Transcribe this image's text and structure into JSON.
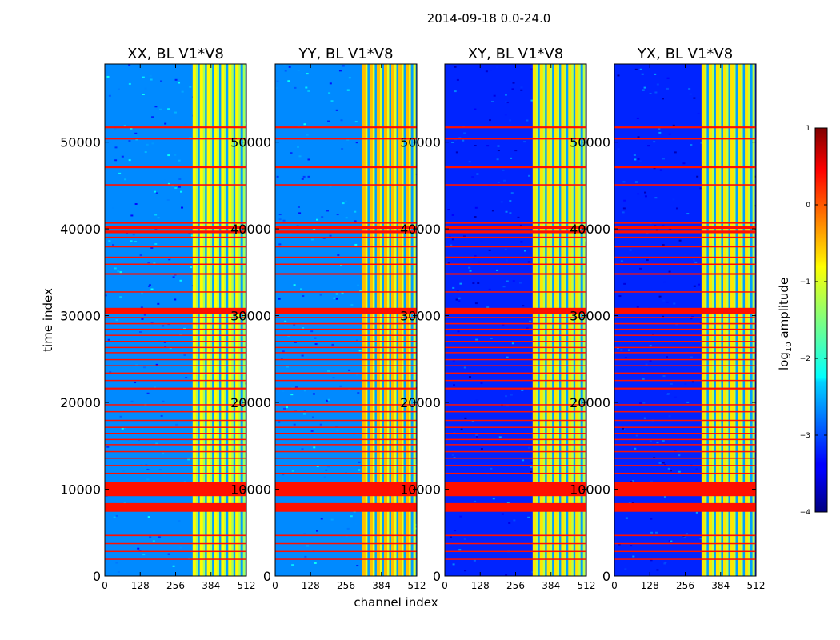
{
  "suptitle": "2014-09-18 0.0-24.0",
  "colormap": "jet",
  "chart_data": [
    {
      "type": "heatmap",
      "title": "XX, BL V1*V8",
      "xlabel": "channel index",
      "ylabel": "time index",
      "xlim": [
        0,
        512
      ],
      "ylim": [
        0,
        59000
      ],
      "xticks": [
        0,
        128,
        256,
        384,
        512
      ],
      "yticks": [
        0,
        10000,
        20000,
        30000,
        40000,
        50000
      ],
      "value_scale": "log10 amplitude",
      "background_level": -2.7,
      "band_channels": [
        328,
        508
      ],
      "band_level": -1.3,
      "flagged_rows_level": 0.3
    },
    {
      "type": "heatmap",
      "title": "YY, BL V1*V8",
      "xlabel": "channel index",
      "ylabel": "",
      "xlim": [
        0,
        512
      ],
      "ylim": [
        0,
        59000
      ],
      "xticks": [
        0,
        128,
        256,
        384,
        512
      ],
      "yticks": [
        0,
        10000,
        20000,
        30000,
        40000,
        50000
      ],
      "value_scale": "log10 amplitude",
      "background_level": -2.7,
      "band_channels": [
        325,
        508
      ],
      "band_level": -1.0,
      "flagged_rows_level": 0.3
    },
    {
      "type": "heatmap",
      "title": "XY, BL V1*V8",
      "xlabel": "",
      "ylabel": "",
      "xlim": [
        0,
        512
      ],
      "ylim": [
        0,
        59000
      ],
      "xticks": [
        0,
        128,
        256,
        384,
        512
      ],
      "yticks": [
        0,
        10000,
        20000,
        30000,
        40000,
        50000
      ],
      "value_scale": "log10 amplitude",
      "background_level": -3.2,
      "band_channels": [
        328,
        508
      ],
      "band_level": -1.2,
      "flagged_rows_level": 0.3
    },
    {
      "type": "heatmap",
      "title": "YX, BL V1*V8",
      "xlabel": "",
      "ylabel": "",
      "xlim": [
        0,
        512
      ],
      "ylim": [
        0,
        59000
      ],
      "xticks": [
        0,
        128,
        256,
        384,
        512
      ],
      "yticks": [
        0,
        10000,
        20000,
        30000,
        40000,
        50000
      ],
      "value_scale": "log10 amplitude",
      "background_level": -3.2,
      "band_channels": [
        325,
        508
      ],
      "band_level": -1.2,
      "flagged_rows_level": 0.3
    }
  ],
  "colorbar": {
    "label": "log",
    "label_sub": "10",
    "label_tail": " amplitude",
    "min": -4,
    "max": 1,
    "ticks": [
      -4,
      -3,
      -2,
      -1,
      0,
      1
    ]
  },
  "flagged_time_bands": [
    [
      51600,
      51800
    ],
    [
      50300,
      50500
    ],
    [
      47000,
      47200
    ],
    [
      45000,
      45150
    ],
    [
      40600,
      40800
    ],
    [
      40000,
      40300
    ],
    [
      39500,
      39800
    ],
    [
      38900,
      39100
    ],
    [
      37900,
      38000
    ],
    [
      36700,
      36800
    ],
    [
      35900,
      36000
    ],
    [
      34700,
      34900
    ],
    [
      32700,
      32800
    ],
    [
      30200,
      30900
    ],
    [
      29700,
      29850
    ],
    [
      29000,
      29150
    ],
    [
      28400,
      28500
    ],
    [
      27700,
      27800
    ],
    [
      27000,
      27100
    ],
    [
      26300,
      26400
    ],
    [
      25700,
      25800
    ],
    [
      24900,
      25000
    ],
    [
      24200,
      24300
    ],
    [
      23300,
      23450
    ],
    [
      22500,
      22600
    ],
    [
      21500,
      21700
    ],
    [
      19700,
      19800
    ],
    [
      18900,
      19000
    ],
    [
      17900,
      18000
    ],
    [
      17100,
      17200
    ],
    [
      16400,
      16500
    ],
    [
      15700,
      15800
    ],
    [
      15100,
      15200
    ],
    [
      14300,
      14400
    ],
    [
      13500,
      13650
    ],
    [
      12700,
      12800
    ],
    [
      11800,
      11900
    ],
    [
      9200,
      10800
    ],
    [
      7400,
      8400
    ],
    [
      4600,
      4750
    ],
    [
      3700,
      3800
    ],
    [
      2800,
      2900
    ],
    [
      1900,
      2000
    ]
  ]
}
